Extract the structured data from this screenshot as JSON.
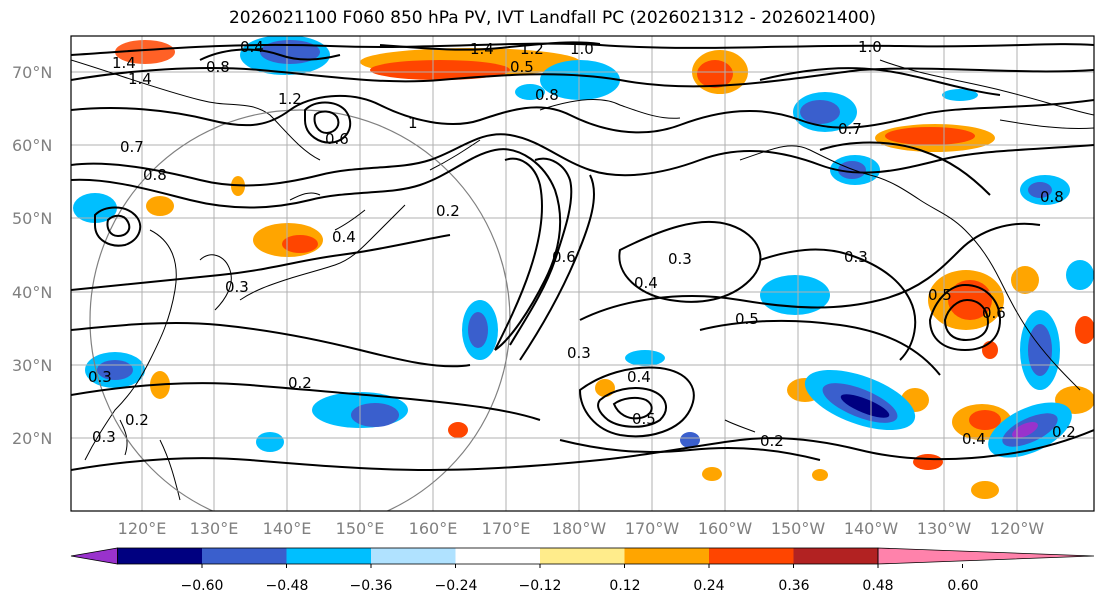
{
  "title": "2026021100 F060 850 hPa PV, IVT Landfall PC (2026021312 - 2026021400)",
  "lat_labels": [
    "70°N",
    "60°N",
    "50°N",
    "40°N",
    "30°N",
    "20°N"
  ],
  "lon_labels": [
    "120°E",
    "130°E",
    "140°E",
    "150°E",
    "160°E",
    "170°E",
    "180°W",
    "170°W",
    "160°W",
    "150°W",
    "140°W",
    "130°W",
    "120°W"
  ],
  "colorbar": {
    "tick_labels": [
      "−0.60",
      "−0.48",
      "−0.36",
      "−0.24",
      "−0.12",
      "0.12",
      "0.24",
      "0.36",
      "0.48",
      "0.60"
    ],
    "colors": [
      "#9932cc",
      "#000080",
      "#3a5fcd",
      "#00bfff",
      "#b0e2ff",
      "#ffffff",
      "#ffec8b",
      "#ffa500",
      "#ff4500",
      "#b22222",
      "#ff82ab"
    ]
  },
  "contour_labels": [
    "1.4",
    "1.2",
    "1.0",
    "1.0",
    "1.4",
    "1.4",
    "0.8",
    "0.4",
    "1.2",
    "1",
    "0.6",
    "0.8",
    "0.7",
    "0.7",
    "0.2",
    "0.4",
    "0.3",
    "0.4",
    "0.5",
    "0.3",
    "0.5",
    "0.6",
    "0.3",
    "0.5",
    "0.4",
    "0.2",
    "0.2",
    "0.3",
    "0.2",
    "0.3",
    "0.2",
    "0.3",
    "0.4",
    "0.6",
    "0.5",
    "0.8",
    "0.8"
  ]
}
